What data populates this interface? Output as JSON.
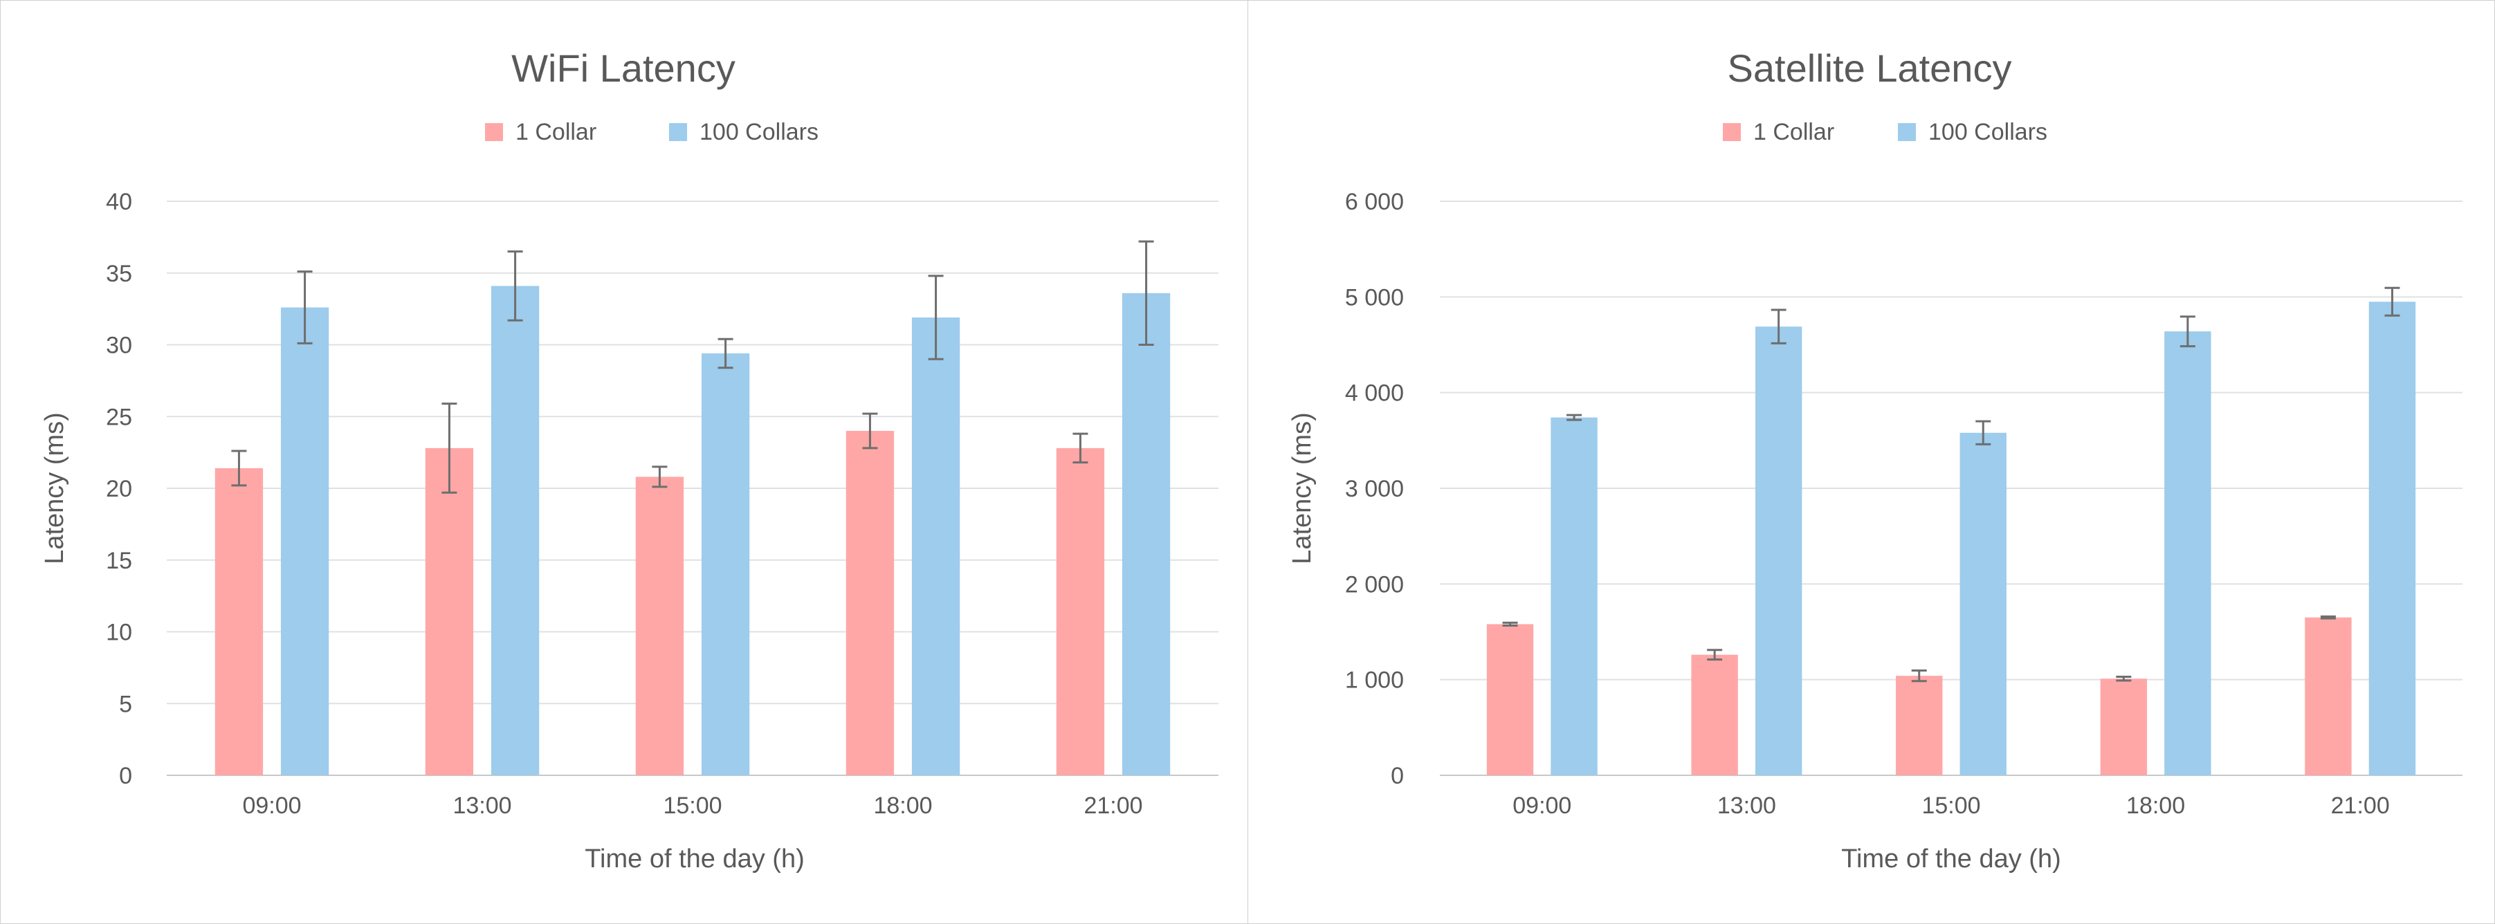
{
  "chart_data": [
    {
      "type": "bar",
      "title": "WiFi Latency",
      "xlabel": "Time of the day (h)",
      "ylabel": "Latency (ms)",
      "categories": [
        "09:00",
        "13:00",
        "15:00",
        "18:00",
        "21:00"
      ],
      "series": [
        {
          "name": "1 Collar",
          "values": [
            21.4,
            22.8,
            20.8,
            24.0,
            22.8
          ],
          "errors": [
            1.2,
            3.1,
            0.7,
            1.2,
            1.0
          ]
        },
        {
          "name": "100 Collars",
          "values": [
            32.6,
            34.1,
            29.4,
            31.9,
            33.6
          ],
          "errors": [
            2.5,
            2.4,
            1.0,
            2.9,
            3.6
          ]
        }
      ],
      "ylim": [
        0,
        40
      ],
      "yticks": [
        0,
        5,
        10,
        15,
        20,
        25,
        30,
        35,
        40
      ],
      "ytick_labels": [
        "0",
        "5",
        "10",
        "15",
        "20",
        "25",
        "30",
        "35",
        "40"
      ],
      "grid": true,
      "legend_position": "top",
      "colors": [
        "#ffa7a7",
        "#9dccec"
      ]
    },
    {
      "type": "bar",
      "title": "Satellite Latency",
      "xlabel": "Time of the day (h)",
      "ylabel": "Latency (ms)",
      "categories": [
        "09:00",
        "13:00",
        "15:00",
        "18:00",
        "21:00"
      ],
      "series": [
        {
          "name": "1 Collar",
          "values": [
            1580,
            1260,
            1040,
            1010,
            1650
          ],
          "errors": [
            15,
            50,
            55,
            20,
            10
          ]
        },
        {
          "name": "100 Collars",
          "values": [
            3740,
            4690,
            3580,
            4640,
            4950
          ],
          "errors": [
            25,
            175,
            120,
            155,
            145
          ]
        }
      ],
      "ylim": [
        0,
        6000
      ],
      "yticks": [
        0,
        1000,
        2000,
        3000,
        4000,
        5000,
        6000
      ],
      "ytick_labels": [
        "0",
        "1 000",
        "2 000",
        "3 000",
        "4 000",
        "5 000",
        "6 000"
      ],
      "grid": true,
      "legend_position": "top",
      "colors": [
        "#ffa7a7",
        "#9dccec"
      ]
    }
  ]
}
